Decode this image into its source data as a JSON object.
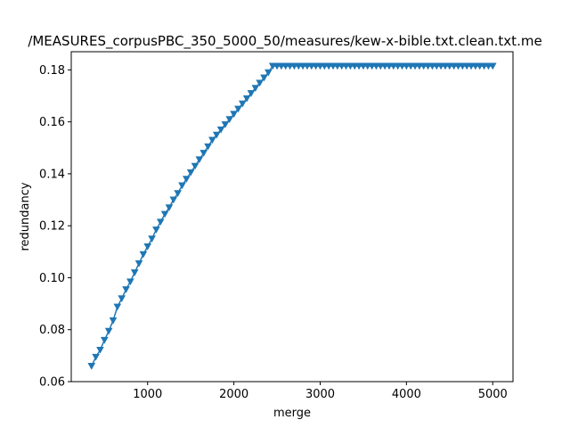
{
  "chart_data": {
    "type": "line",
    "title": "/MEASURES_corpusPBC_350_5000_50/measures/kew-x-bible.txt.clean.txt.me",
    "xlabel": "merge",
    "ylabel": "redundancy",
    "xlim": [
      115,
      5235
    ],
    "ylim": [
      0.06,
      0.187
    ],
    "xticks": [
      1000,
      2000,
      3000,
      4000,
      5000
    ],
    "xtick_labels": [
      "1000",
      "2000",
      "3000",
      "4000",
      "5000"
    ],
    "yticks": [
      0.06,
      0.08,
      0.1,
      0.12,
      0.14,
      0.16,
      0.18
    ],
    "ytick_labels": [
      "0.06",
      "0.08",
      "0.10",
      "0.12",
      "0.14",
      "0.16",
      "0.18"
    ],
    "grid": false,
    "marker": "triangle-down",
    "color": "#1f77b4",
    "series": [
      {
        "x_start": 350,
        "x_step": 50,
        "x_end": 5000,
        "y": [
          0.066,
          0.0695,
          0.0722,
          0.076,
          0.0795,
          0.0835,
          0.0888,
          0.092,
          0.0955,
          0.0985,
          0.102,
          0.1055,
          0.109,
          0.112,
          0.115,
          0.1185,
          0.1215,
          0.1245,
          0.127,
          0.13,
          0.1325,
          0.1355,
          0.138,
          0.1405,
          0.143,
          0.1455,
          0.148,
          0.1505,
          0.153,
          0.155,
          0.157,
          0.159,
          0.161,
          0.163,
          0.165,
          0.167,
          0.169,
          0.171,
          0.173,
          0.175,
          0.177,
          0.179,
          0.1815
        ],
        "plateau": 0.1815
      }
    ]
  }
}
